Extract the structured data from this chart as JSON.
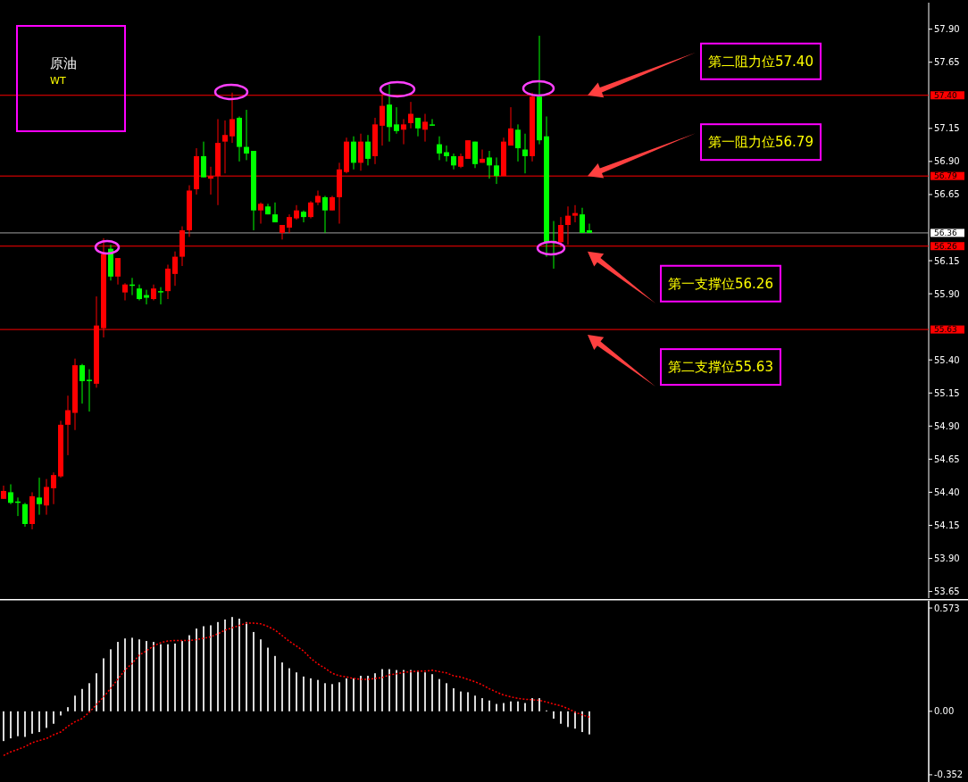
{
  "chart_data": [
    {
      "type": "candlestick",
      "title": "原油",
      "subtitle": "WT",
      "categories": [
        null,
        null,
        null,
        null,
        null,
        null,
        null,
        null,
        null,
        null,
        null,
        null,
        null,
        null,
        null,
        null,
        null,
        null,
        null,
        null,
        null,
        null,
        null,
        null,
        null,
        null,
        null,
        null,
        null,
        null,
        null,
        null,
        null,
        null,
        null,
        null,
        null,
        null,
        null,
        null,
        null,
        null,
        null,
        null,
        null,
        null,
        null,
        null,
        null,
        null,
        null,
        null,
        null,
        null,
        null,
        null,
        null,
        null,
        null,
        null,
        null,
        null,
        null,
        null,
        null,
        null,
        null,
        null,
        null,
        null,
        null,
        null,
        null,
        null,
        null,
        null,
        null,
        null,
        null,
        null,
        null,
        null,
        null,
        null,
        null,
        null,
        null,
        null,
        null,
        null,
        null,
        null,
        null,
        null,
        null,
        null,
        null,
        null,
        null,
        null,
        null,
        null,
        null,
        null,
        null,
        null,
        null,
        null,
        null,
        null,
        null,
        null,
        null,
        null,
        null,
        null,
        null,
        null,
        null,
        null,
        null,
        null,
        null,
        null,
        null,
        null,
        null,
        null,
        null,
        null
      ],
      "ohlc": [
        [
          54.35,
          54.45,
          54.35,
          54.41
        ],
        [
          54.4,
          54.46,
          54.31,
          54.32
        ],
        [
          54.33,
          54.36,
          54.22,
          54.32
        ],
        [
          54.31,
          54.32,
          54.14,
          54.16
        ],
        [
          54.16,
          54.4,
          54.12,
          54.37
        ],
        [
          54.36,
          54.51,
          54.23,
          54.31
        ],
        [
          54.3,
          54.5,
          54.23,
          54.44
        ],
        [
          54.43,
          54.55,
          54.31,
          54.53
        ],
        [
          54.52,
          54.94,
          54.51,
          54.91
        ],
        [
          54.91,
          55.13,
          54.68,
          55.02
        ],
        [
          55.0,
          55.41,
          54.87,
          55.36
        ],
        [
          55.36,
          55.37,
          55.07,
          55.24
        ],
        [
          55.25,
          55.33,
          55.01,
          55.24
        ],
        [
          55.22,
          55.88,
          55.19,
          55.66
        ],
        [
          55.64,
          56.32,
          55.57,
          56.2
        ],
        [
          56.24,
          56.27,
          56.0,
          56.03
        ],
        [
          56.03,
          56.17,
          55.97,
          56.17
        ],
        [
          55.91,
          55.98,
          55.85,
          55.97
        ],
        [
          55.97,
          56.02,
          55.89,
          55.96
        ],
        [
          55.94,
          55.97,
          55.85,
          55.86
        ],
        [
          55.89,
          55.93,
          55.82,
          55.87
        ],
        [
          55.86,
          55.97,
          55.85,
          55.94
        ],
        [
          55.92,
          55.95,
          55.82,
          55.91
        ],
        [
          55.92,
          56.12,
          55.86,
          56.09
        ],
        [
          56.05,
          56.22,
          55.96,
          56.18
        ],
        [
          56.18,
          56.41,
          56.11,
          56.38
        ],
        [
          56.38,
          56.72,
          56.33,
          56.68
        ],
        [
          56.69,
          57.0,
          56.65,
          56.94
        ],
        [
          56.94,
          57.05,
          56.78,
          56.78
        ],
        [
          56.77,
          56.86,
          56.65,
          56.79
        ],
        [
          56.79,
          57.22,
          56.57,
          57.04
        ],
        [
          57.05,
          57.21,
          56.81,
          57.1
        ],
        [
          57.09,
          57.42,
          57.04,
          57.22
        ],
        [
          57.23,
          57.24,
          56.9,
          57.01
        ],
        [
          57.01,
          57.29,
          56.91,
          56.96
        ],
        [
          56.98,
          56.98,
          56.38,
          56.53
        ],
        [
          56.53,
          56.59,
          56.43,
          56.58
        ],
        [
          56.56,
          56.58,
          56.5,
          56.5
        ],
        [
          56.5,
          56.59,
          56.44,
          56.44
        ],
        [
          56.36,
          56.42,
          56.31,
          56.42
        ],
        [
          56.4,
          56.5,
          56.36,
          56.48
        ],
        [
          56.47,
          56.57,
          56.46,
          56.53
        ],
        [
          56.52,
          56.53,
          56.44,
          56.48
        ],
        [
          56.48,
          56.6,
          56.47,
          56.59
        ],
        [
          56.59,
          56.68,
          56.57,
          56.64
        ],
        [
          56.63,
          56.64,
          56.36,
          56.53
        ],
        [
          56.53,
          56.64,
          56.53,
          56.63
        ],
        [
          56.63,
          56.89,
          56.43,
          56.84
        ],
        [
          56.82,
          57.08,
          56.81,
          57.05
        ],
        [
          57.05,
          57.09,
          56.84,
          56.89
        ],
        [
          56.89,
          57.11,
          56.83,
          57.05
        ],
        [
          57.05,
          57.1,
          56.87,
          56.92
        ],
        [
          56.94,
          57.23,
          56.88,
          57.18
        ],
        [
          57.17,
          57.41,
          57.02,
          57.32
        ],
        [
          57.33,
          57.48,
          57.05,
          57.16
        ],
        [
          57.18,
          57.31,
          57.11,
          57.13
        ],
        [
          57.14,
          57.22,
          57.03,
          57.18
        ],
        [
          57.19,
          57.35,
          57.15,
          57.26
        ],
        [
          57.23,
          57.23,
          57.09,
          57.15
        ],
        [
          57.14,
          57.26,
          57.05,
          57.2
        ],
        [
          57.18,
          57.22,
          57.17,
          57.17
        ],
        [
          57.03,
          57.09,
          56.91,
          56.96
        ],
        [
          56.97,
          57.02,
          56.9,
          56.94
        ],
        [
          56.94,
          56.96,
          56.84,
          56.87
        ],
        [
          56.86,
          56.96,
          56.85,
          56.94
        ],
        [
          56.92,
          57.06,
          56.92,
          57.06
        ],
        [
          57.05,
          57.05,
          56.85,
          56.88
        ],
        [
          56.89,
          56.99,
          56.89,
          56.92
        ],
        [
          56.93,
          56.98,
          56.77,
          56.87
        ],
        [
          56.87,
          56.93,
          56.73,
          56.79
        ],
        [
          56.79,
          57.08,
          56.79,
          57.05
        ],
        [
          57.02,
          57.31,
          57.02,
          57.15
        ],
        [
          57.14,
          57.18,
          56.9,
          57.0
        ],
        [
          56.99,
          57.11,
          56.81,
          56.94
        ],
        [
          56.94,
          57.42,
          56.9,
          57.39
        ],
        [
          57.39,
          57.85,
          57.03,
          57.06
        ],
        [
          57.09,
          57.24,
          56.18,
          56.29
        ],
        [
          56.3,
          56.45,
          56.09,
          56.29
        ],
        [
          56.29,
          56.48,
          56.25,
          56.42
        ],
        [
          56.42,
          56.56,
          56.27,
          56.49
        ],
        [
          56.49,
          56.57,
          56.44,
          56.51
        ],
        [
          56.5,
          56.55,
          56.36,
          56.36
        ],
        [
          56.38,
          56.43,
          56.36,
          56.36
        ],
        null,
        null,
        null,
        null,
        null,
        null,
        null,
        null,
        null,
        null,
        null,
        null,
        null,
        null,
        null,
        null,
        null,
        null,
        null,
        null,
        null,
        null,
        null,
        null,
        null,
        null,
        null,
        null,
        null,
        null,
        null,
        null,
        null,
        null,
        null,
        null,
        null,
        null,
        null,
        null,
        null,
        null,
        null,
        null,
        null,
        null,
        null
      ],
      "colors": [
        "#ff0000",
        "#00ff00",
        "#00ff00",
        "#00ff00",
        "#ff0000",
        "#00ff00",
        "#ff0000",
        "#ff0000",
        "#ff0000",
        "#ff0000",
        "#ff0000",
        "#00ff00",
        "#00ff00",
        "#ff0000",
        "#ff0000",
        "#00ff00",
        "#ff0000",
        "#ff0000",
        "#00ff00",
        "#00ff00",
        "#00ff00",
        "#ff0000",
        "#00ff00",
        "#ff0000",
        "#ff0000",
        "#ff0000",
        "#ff0000",
        "#ff0000",
        "#00ff00",
        "#ff0000",
        "#ff0000",
        "#ff0000",
        "#ff0000",
        "#00ff00",
        "#00ff00",
        "#00ff00",
        "#ff0000",
        "#00ff00",
        "#00ff00",
        "#ff0000",
        "#ff0000",
        "#ff0000",
        "#00ff00",
        "#ff0000",
        "#ff0000",
        "#00ff00",
        "#ff0000",
        "#ff0000",
        "#ff0000",
        "#00ff00",
        "#ff0000",
        "#00ff00",
        "#ff0000",
        "#ff0000",
        "#00ff00",
        "#00ff00",
        "#ff0000",
        "#ff0000",
        "#00ff00",
        "#ff0000",
        "#00ff00",
        "#00ff00",
        "#00ff00",
        "#00ff00",
        "#ff0000",
        "#ff0000",
        "#00ff00",
        "#ff0000",
        "#00ff00",
        "#00ff00",
        "#ff0000",
        "#ff0000",
        "#00ff00",
        "#00ff00",
        "#ff0000",
        "#00ff00",
        "#00ff00",
        "#00ff00",
        "#ff0000",
        "#ff0000",
        "#ff0000",
        "#00ff00",
        "#00ff00",
        null,
        null,
        null,
        null,
        null,
        null,
        null,
        null,
        null,
        null,
        null,
        null,
        null,
        null,
        null,
        null,
        null,
        null,
        null,
        null,
        null,
        null,
        null,
        null,
        null,
        null,
        null,
        null,
        null,
        null,
        null,
        null,
        null,
        null,
        null,
        null,
        null,
        null,
        null,
        null,
        null,
        null,
        null,
        null,
        null,
        null,
        null
      ],
      "ylim": [
        53.6,
        58.1
      ],
      "yticks": [
        {
          "value": 57.9,
          "label": "57.90"
        },
        57.65,
        {
          "value": 57.4,
          "label": "57.40"
        },
        57.15,
        {
          "value": 56.9,
          "label": "56.90"
        },
        {
          "value": 56.79,
          "label": "56.79"
        },
        56.65,
        {
          "value": 56.36,
          "label": "56.36"
        },
        {
          "value": 56.26,
          "label": "56.26"
        },
        56.15,
        {
          "value": 55.9,
          "label": "55.90"
        },
        {
          "value": 55.63,
          "label": "55.63"
        },
        {
          "value": 55.4,
          "label": "55.40"
        },
        55.15,
        {
          "value": 54.9,
          "label": "54.90"
        },
        54.65,
        {
          "value": 54.4,
          "label": "54.40"
        },
        54.15,
        {
          "value": 53.9,
          "label": "53.90"
        },
        53.65
      ],
      "ref_lines": [
        {
          "axis": "y",
          "value": 57.4,
          "label": "第二阻力位57.40",
          "color": "#ff0000"
        },
        {
          "axis": "y",
          "value": 56.79,
          "label": "第一阻力位56.79",
          "color": "#ff0000"
        },
        {
          "axis": "y",
          "value": 56.36,
          "color": "#a0a0a0"
        },
        {
          "axis": "y",
          "value": 56.26,
          "label": "第一支撑位56.26",
          "color": "#ff0000"
        },
        {
          "axis": "y",
          "value": 55.63,
          "label": "第二支撑位55.63",
          "color": "#ff0000"
        }
      ]
    },
    {
      "type": "bar",
      "categories": [
        null,
        null,
        null,
        null,
        null,
        null,
        null,
        null,
        null,
        null,
        null,
        null,
        null,
        null,
        null,
        null,
        null,
        null,
        null,
        null,
        null,
        null,
        null,
        null,
        null,
        null,
        null,
        null,
        null,
        null,
        null,
        null,
        null,
        null,
        null,
        null,
        null,
        null,
        null,
        null,
        null,
        null,
        null,
        null,
        null,
        null,
        null,
        null,
        null,
        null,
        null,
        null,
        null,
        null,
        null,
        null,
        null,
        null,
        null,
        null,
        null,
        null,
        null,
        null,
        null,
        null,
        null,
        null,
        null,
        null,
        null,
        null,
        null,
        null,
        null,
        null,
        null,
        null,
        null,
        null,
        null,
        null,
        null,
        null,
        null,
        null,
        null,
        null,
        null,
        null,
        null,
        null,
        null,
        null,
        null,
        null,
        null,
        null,
        null,
        null,
        null,
        null,
        null,
        null,
        null,
        null,
        null,
        null,
        null,
        null,
        null,
        null,
        null,
        null,
        null,
        null,
        null,
        null,
        null,
        null,
        null,
        null,
        null,
        null,
        null,
        null,
        null,
        null,
        null,
        null
      ],
      "color": "#d9d9d9",
      "values": [
        -0.165,
        -0.15,
        -0.138,
        -0.142,
        -0.124,
        -0.115,
        -0.092,
        -0.069,
        -0.023,
        0.023,
        0.087,
        0.124,
        0.156,
        0.211,
        0.294,
        0.344,
        0.385,
        0.404,
        0.408,
        0.399,
        0.39,
        0.385,
        0.372,
        0.372,
        0.376,
        0.39,
        0.422,
        0.459,
        0.472,
        0.477,
        0.495,
        0.509,
        0.523,
        0.514,
        0.495,
        0.44,
        0.399,
        0.353,
        0.307,
        0.271,
        0.239,
        0.216,
        0.193,
        0.183,
        0.174,
        0.156,
        0.151,
        0.161,
        0.183,
        0.183,
        0.197,
        0.197,
        0.211,
        0.234,
        0.234,
        0.229,
        0.229,
        0.229,
        0.22,
        0.216,
        0.206,
        0.179,
        0.156,
        0.128,
        0.11,
        0.106,
        0.087,
        0.073,
        0.06,
        0.041,
        0.046,
        0.055,
        0.055,
        0.046,
        0.073,
        0.073,
        0.005,
        -0.041,
        -0.069,
        -0.087,
        -0.096,
        -0.115,
        -0.128,
        null,
        null,
        null,
        null,
        null,
        null,
        null,
        null,
        null,
        null,
        null,
        null,
        null,
        null,
        null,
        null,
        null,
        null,
        null,
        null,
        null,
        null,
        null,
        null,
        null,
        null,
        null,
        null,
        null,
        null,
        null,
        null,
        null,
        null,
        null,
        null,
        null,
        null,
        null,
        null,
        null,
        null,
        null,
        null,
        null,
        null,
        null
      ],
      "ylim": [
        -0.392,
        0.613
      ],
      "yticks": [
        0.573,
        {
          "value": 0,
          "label": "0.00"
        },
        -0.352
      ]
    },
    {
      "type": "line",
      "categories": [
        null,
        null,
        null,
        null,
        null,
        null,
        null,
        null,
        null,
        null,
        null,
        null,
        null,
        null,
        null,
        null,
        null,
        null,
        null,
        null,
        null,
        null,
        null,
        null,
        null,
        null,
        null,
        null,
        null,
        null,
        null,
        null,
        null,
        null,
        null,
        null,
        null,
        null,
        null,
        null,
        null,
        null,
        null,
        null,
        null,
        null,
        null,
        null,
        null,
        null,
        null,
        null,
        null,
        null,
        null,
        null,
        null,
        null,
        null,
        null,
        null,
        null,
        null,
        null,
        null,
        null,
        null,
        null,
        null,
        null,
        null,
        null,
        null,
        null,
        null,
        null,
        null,
        null,
        null,
        null,
        null,
        null,
        null,
        null,
        null,
        null,
        null,
        null,
        null,
        null,
        null,
        null,
        null,
        null,
        null,
        null,
        null,
        null,
        null,
        null,
        null,
        null,
        null,
        null,
        null,
        null,
        null,
        null,
        null,
        null,
        null,
        null,
        null,
        null,
        null,
        null,
        null,
        null,
        null,
        null,
        null,
        null,
        null,
        null,
        null,
        null,
        null,
        null,
        null,
        null
      ],
      "color": "#ff0000",
      "line_style": "dotted",
      "values": [
        -0.245,
        -0.225,
        -0.211,
        -0.196,
        -0.174,
        -0.162,
        -0.151,
        -0.13,
        -0.115,
        -0.083,
        -0.058,
        -0.04,
        -0.005,
        0.037,
        0.08,
        0.128,
        0.179,
        0.229,
        0.266,
        0.312,
        0.336,
        0.362,
        0.381,
        0.39,
        0.393,
        0.393,
        0.393,
        0.398,
        0.405,
        0.413,
        0.43,
        0.45,
        0.463,
        0.476,
        0.489,
        0.489,
        0.485,
        0.471,
        0.45,
        0.42,
        0.388,
        0.362,
        0.334,
        0.294,
        0.263,
        0.239,
        0.211,
        0.197,
        0.191,
        0.182,
        0.177,
        0.177,
        0.182,
        0.187,
        0.202,
        0.208,
        0.216,
        0.22,
        0.223,
        0.223,
        0.228,
        0.22,
        0.213,
        0.197,
        0.19,
        0.177,
        0.164,
        0.147,
        0.125,
        0.107,
        0.09,
        0.08,
        0.072,
        0.067,
        0.064,
        0.061,
        0.052,
        0.04,
        0.031,
        0.015,
        -0.005,
        -0.02,
        -0.032,
        null,
        null,
        null,
        null,
        null,
        null,
        null,
        null,
        null,
        null,
        null,
        null,
        null,
        null,
        null,
        null,
        null,
        null,
        null,
        null,
        null,
        null,
        null,
        null,
        null,
        null,
        null,
        null,
        null,
        null,
        null,
        null,
        null,
        null,
        null,
        null,
        null,
        null,
        null,
        null,
        null,
        null,
        null,
        null,
        null,
        null,
        null
      ],
      "ylim": [
        -0.392,
        0.613
      ]
    }
  ]
}
